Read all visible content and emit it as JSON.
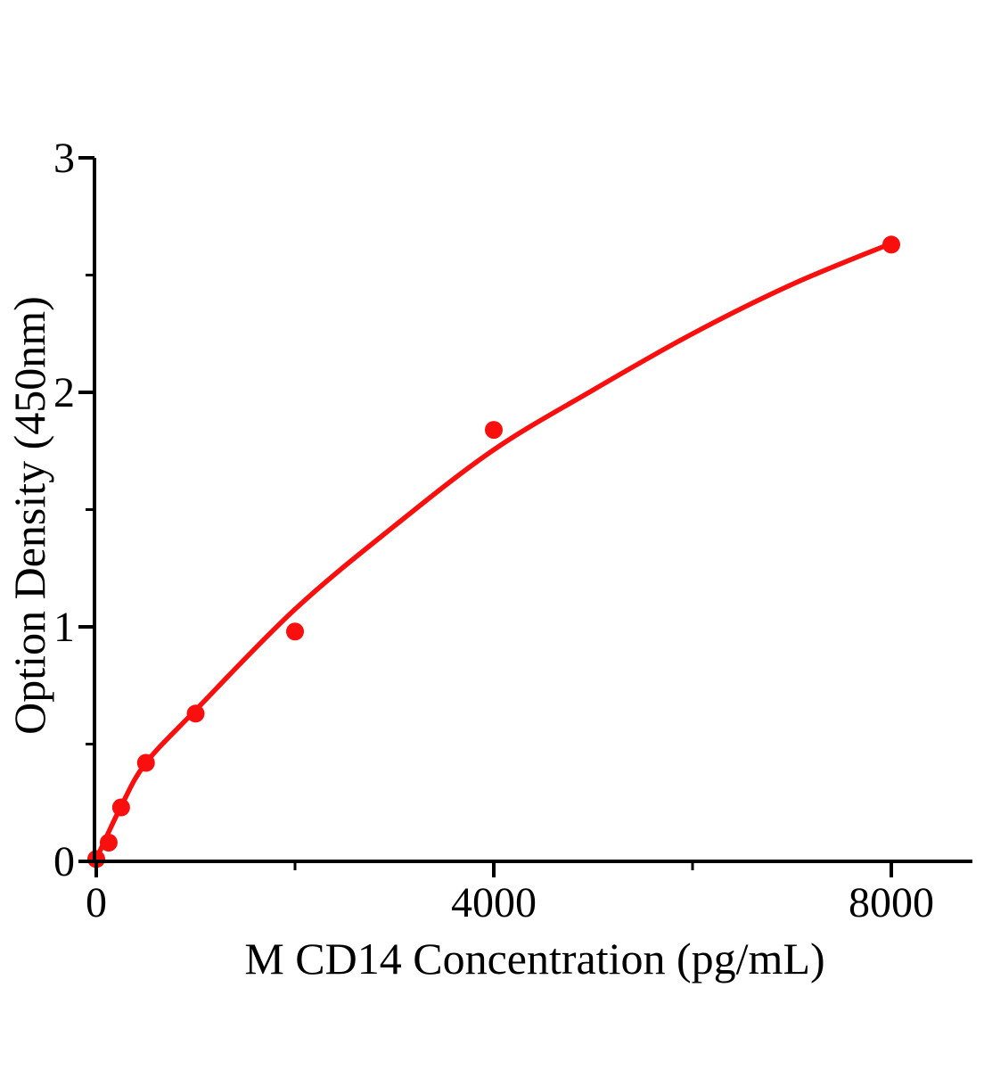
{
  "figure": {
    "background": "#ffffff",
    "title": ""
  },
  "chart_data": {
    "type": "scatter",
    "title": "",
    "xlabel": "M CD14 Concentration（pg/mL）",
    "ylabel": "Option Density（450nm）",
    "x": [
      0,
      125,
      250,
      500,
      1000,
      2000,
      4000,
      8000
    ],
    "y": [
      0.01,
      0.08,
      0.23,
      0.42,
      0.63,
      0.98,
      1.84,
      2.63
    ],
    "fit_curve": {
      "x": [
        0,
        250,
        500,
        1000,
        2000,
        3000,
        4000,
        5000,
        6000,
        7000,
        8000
      ],
      "y": [
        0.01,
        0.235,
        0.42,
        0.645,
        1.075,
        1.43,
        1.755,
        2.01,
        2.25,
        2.46,
        2.635
      ]
    },
    "x_major_ticks": [
      0,
      4000,
      8000
    ],
    "x_minor_ticks": [
      2000,
      6000
    ],
    "y_major_ticks": [
      0,
      1,
      2,
      3
    ],
    "y_minor_ticks": [
      0.5,
      1.5,
      2.5
    ],
    "xlim": [
      0,
      8810
    ],
    "ylim": [
      0,
      3
    ],
    "grid": false,
    "legend": null,
    "marker_color": "#fa0f0f",
    "curve_color": "#fa0f0f",
    "axis_color": "#000000",
    "text_color": "#000000"
  }
}
